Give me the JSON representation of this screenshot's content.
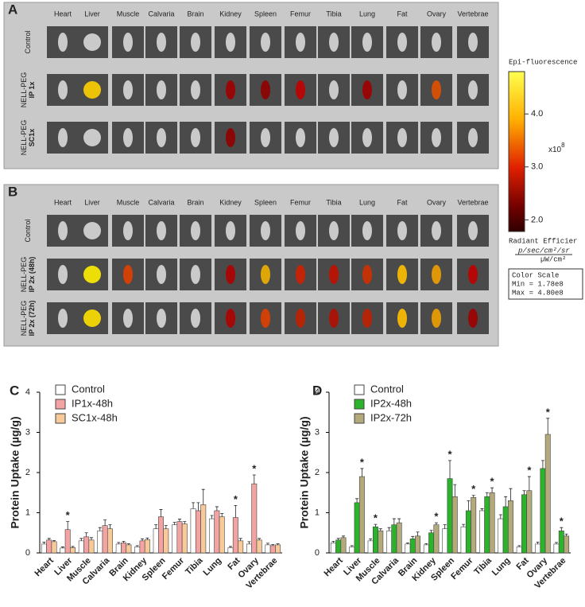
{
  "panels": [
    {
      "label": "A",
      "columns": [
        "Heart",
        "Liver",
        "Muscle",
        "Calvaria",
        "Brain",
        "Kidney",
        "Spleen",
        "Femur",
        "Tibia",
        "Lung",
        "Fat",
        "Ovary",
        "Vertebrae"
      ],
      "rows": [
        {
          "line1": "Control",
          "line2": ""
        },
        {
          "line1": "NELL-PEG",
          "line2": "IP 1x"
        },
        {
          "line1": "NELL-PEG",
          "line2": "SC1x"
        }
      ]
    },
    {
      "label": "B",
      "columns": [
        "Heart",
        "Liver",
        "Muscle",
        "Calvaria",
        "Brain",
        "Kidney",
        "Spleen",
        "Femur",
        "Tibia",
        "Lung",
        "Fat",
        "Ovary",
        "Vertebrae"
      ],
      "rows": [
        {
          "line1": "Control",
          "line2": ""
        },
        {
          "line1": "NELL-PEG",
          "line2": "IP 2x (48h)"
        },
        {
          "line1": "NELL-PEG",
          "line2": "IP 2x (72h)"
        }
      ]
    }
  ],
  "colorbar": {
    "title": "Epi-fluorescence",
    "lim": [
      1.78,
      4.8
    ],
    "ticks": [
      {
        "value": 4,
        "label": "4.0"
      },
      {
        "value": 3,
        "label": "3.0"
      },
      {
        "value": 2,
        "label": "2.0"
      }
    ],
    "multiplier": "x10",
    "exponent": "8",
    "unit_title": "Radiant Efficier",
    "unit_numerator": "p/sec/cm²/sr",
    "unit_denominator": "µW/cm²",
    "scale_title": "Color Scale",
    "scale_min": "Min = 1.78e8",
    "scale_max": "Max = 4.80e8"
  },
  "chart_data": [
    {
      "type": "bar",
      "label": "C",
      "y_label": "Protein Uptake (µg/g)",
      "categories": [
        "Heart",
        "Liver",
        "Muscle",
        "Calvaria",
        "Brain",
        "Kidney",
        "Spleen",
        "Femur",
        "Tibia",
        "Lung",
        "Fat",
        "Ovary",
        "Vertebrae"
      ],
      "series": [
        {
          "name": "Control",
          "color": "#ffffff",
          "values": [
            0.22,
            0.12,
            0.3,
            0.55,
            0.22,
            0.15,
            0.6,
            0.7,
            1.1,
            0.85,
            0.13,
            0.22,
            0.2
          ],
          "errors": [
            0.05,
            0.03,
            0.06,
            0.08,
            0.04,
            0.03,
            0.1,
            0.06,
            0.15,
            0.08,
            0.03,
            0.06,
            0.04
          ]
        },
        {
          "name": "IP1x-48h",
          "color": "#f4a3a3",
          "values": [
            0.32,
            0.58,
            0.4,
            0.68,
            0.25,
            0.3,
            0.9,
            0.78,
            1.05,
            1.05,
            0.88,
            1.72,
            0.18
          ],
          "errors": [
            0.04,
            0.2,
            0.1,
            0.14,
            0.04,
            0.05,
            0.18,
            0.06,
            0.2,
            0.1,
            0.3,
            0.22,
            0.03
          ]
        },
        {
          "name": "SC1x-48h",
          "color": "#f8c999",
          "values": [
            0.28,
            0.13,
            0.32,
            0.6,
            0.2,
            0.33,
            0.6,
            0.72,
            1.2,
            0.9,
            0.3,
            0.32,
            0.2
          ],
          "errors": [
            0.03,
            0.03,
            0.06,
            0.1,
            0.03,
            0.04,
            0.08,
            0.06,
            0.38,
            0.08,
            0.06,
            0.04,
            0.03
          ]
        }
      ],
      "stars": [
        {
          "text": "*",
          "category": "Liver",
          "series": "IP1x-48h"
        },
        {
          "text": "*",
          "category": "Fat",
          "series": "IP1x-48h"
        },
        {
          "text": "*",
          "category": "Ovary",
          "series": "IP1x-48h"
        }
      ],
      "ylim": [
        0,
        4
      ],
      "yticks": [
        0,
        1,
        2,
        3,
        4
      ]
    },
    {
      "type": "bar",
      "label": "D",
      "y_label": "Protein Uptake (µg/g)",
      "categories": [
        "Heart",
        "Liver",
        "Muscle",
        "Calvaria",
        "Brain",
        "Kidney",
        "Spleen",
        "Femur",
        "Tibia",
        "Lung",
        "Fat",
        "Ovary",
        "Vertebrae"
      ],
      "series": [
        {
          "name": "Control",
          "color": "#ffffff",
          "values": [
            0.25,
            0.15,
            0.3,
            0.55,
            0.22,
            0.2,
            0.6,
            0.65,
            1.05,
            0.85,
            0.15,
            0.22,
            0.22
          ],
          "errors": [
            0.04,
            0.03,
            0.05,
            0.08,
            0.03,
            0.03,
            0.1,
            0.06,
            0.05,
            0.1,
            0.03,
            0.05,
            0.04
          ]
        },
        {
          "name": "IP2x-48h",
          "color": "#2bb32b",
          "values": [
            0.32,
            1.25,
            0.65,
            0.7,
            0.35,
            0.5,
            1.85,
            1.05,
            1.4,
            1.15,
            1.45,
            2.1,
            0.55
          ],
          "errors": [
            0.04,
            0.1,
            0.06,
            0.15,
            0.06,
            0.06,
            0.45,
            0.25,
            0.1,
            0.25,
            0.1,
            0.2,
            0.08
          ]
        },
        {
          "name": "IP2x-72h",
          "color": "#b3a97b",
          "values": [
            0.38,
            1.9,
            0.55,
            0.75,
            0.42,
            0.7,
            1.4,
            1.38,
            1.5,
            1.3,
            1.55,
            2.95,
            0.42
          ],
          "errors": [
            0.04,
            0.2,
            0.05,
            0.1,
            0.1,
            0.05,
            0.3,
            0.05,
            0.12,
            0.3,
            0.35,
            0.4,
            0.05
          ]
        }
      ],
      "stars": [
        {
          "text": "*",
          "category": "Liver",
          "series": "IP2x-72h"
        },
        {
          "text": "*",
          "category": "Muscle",
          "series": "IP2x-48h"
        },
        {
          "text": "*",
          "category": "Kidney",
          "series": "IP2x-72h"
        },
        {
          "text": "*",
          "category": "Spleen",
          "series": "IP2x-48h"
        },
        {
          "text": "*",
          "category": "Femur",
          "series": "IP2x-72h"
        },
        {
          "text": "*",
          "category": "Tibia",
          "series": "IP2x-72h"
        },
        {
          "text": "*",
          "category": "Fat",
          "series": "IP2x-72h"
        },
        {
          "text": "*",
          "category": "Ovary",
          "series": "IP2x-72h"
        },
        {
          "text": "*",
          "category": "Vertebrae",
          "series": "IP2x-48h"
        }
      ],
      "ylim": [
        0,
        4
      ],
      "yticks": [
        0,
        1,
        2,
        3,
        4
      ]
    }
  ]
}
